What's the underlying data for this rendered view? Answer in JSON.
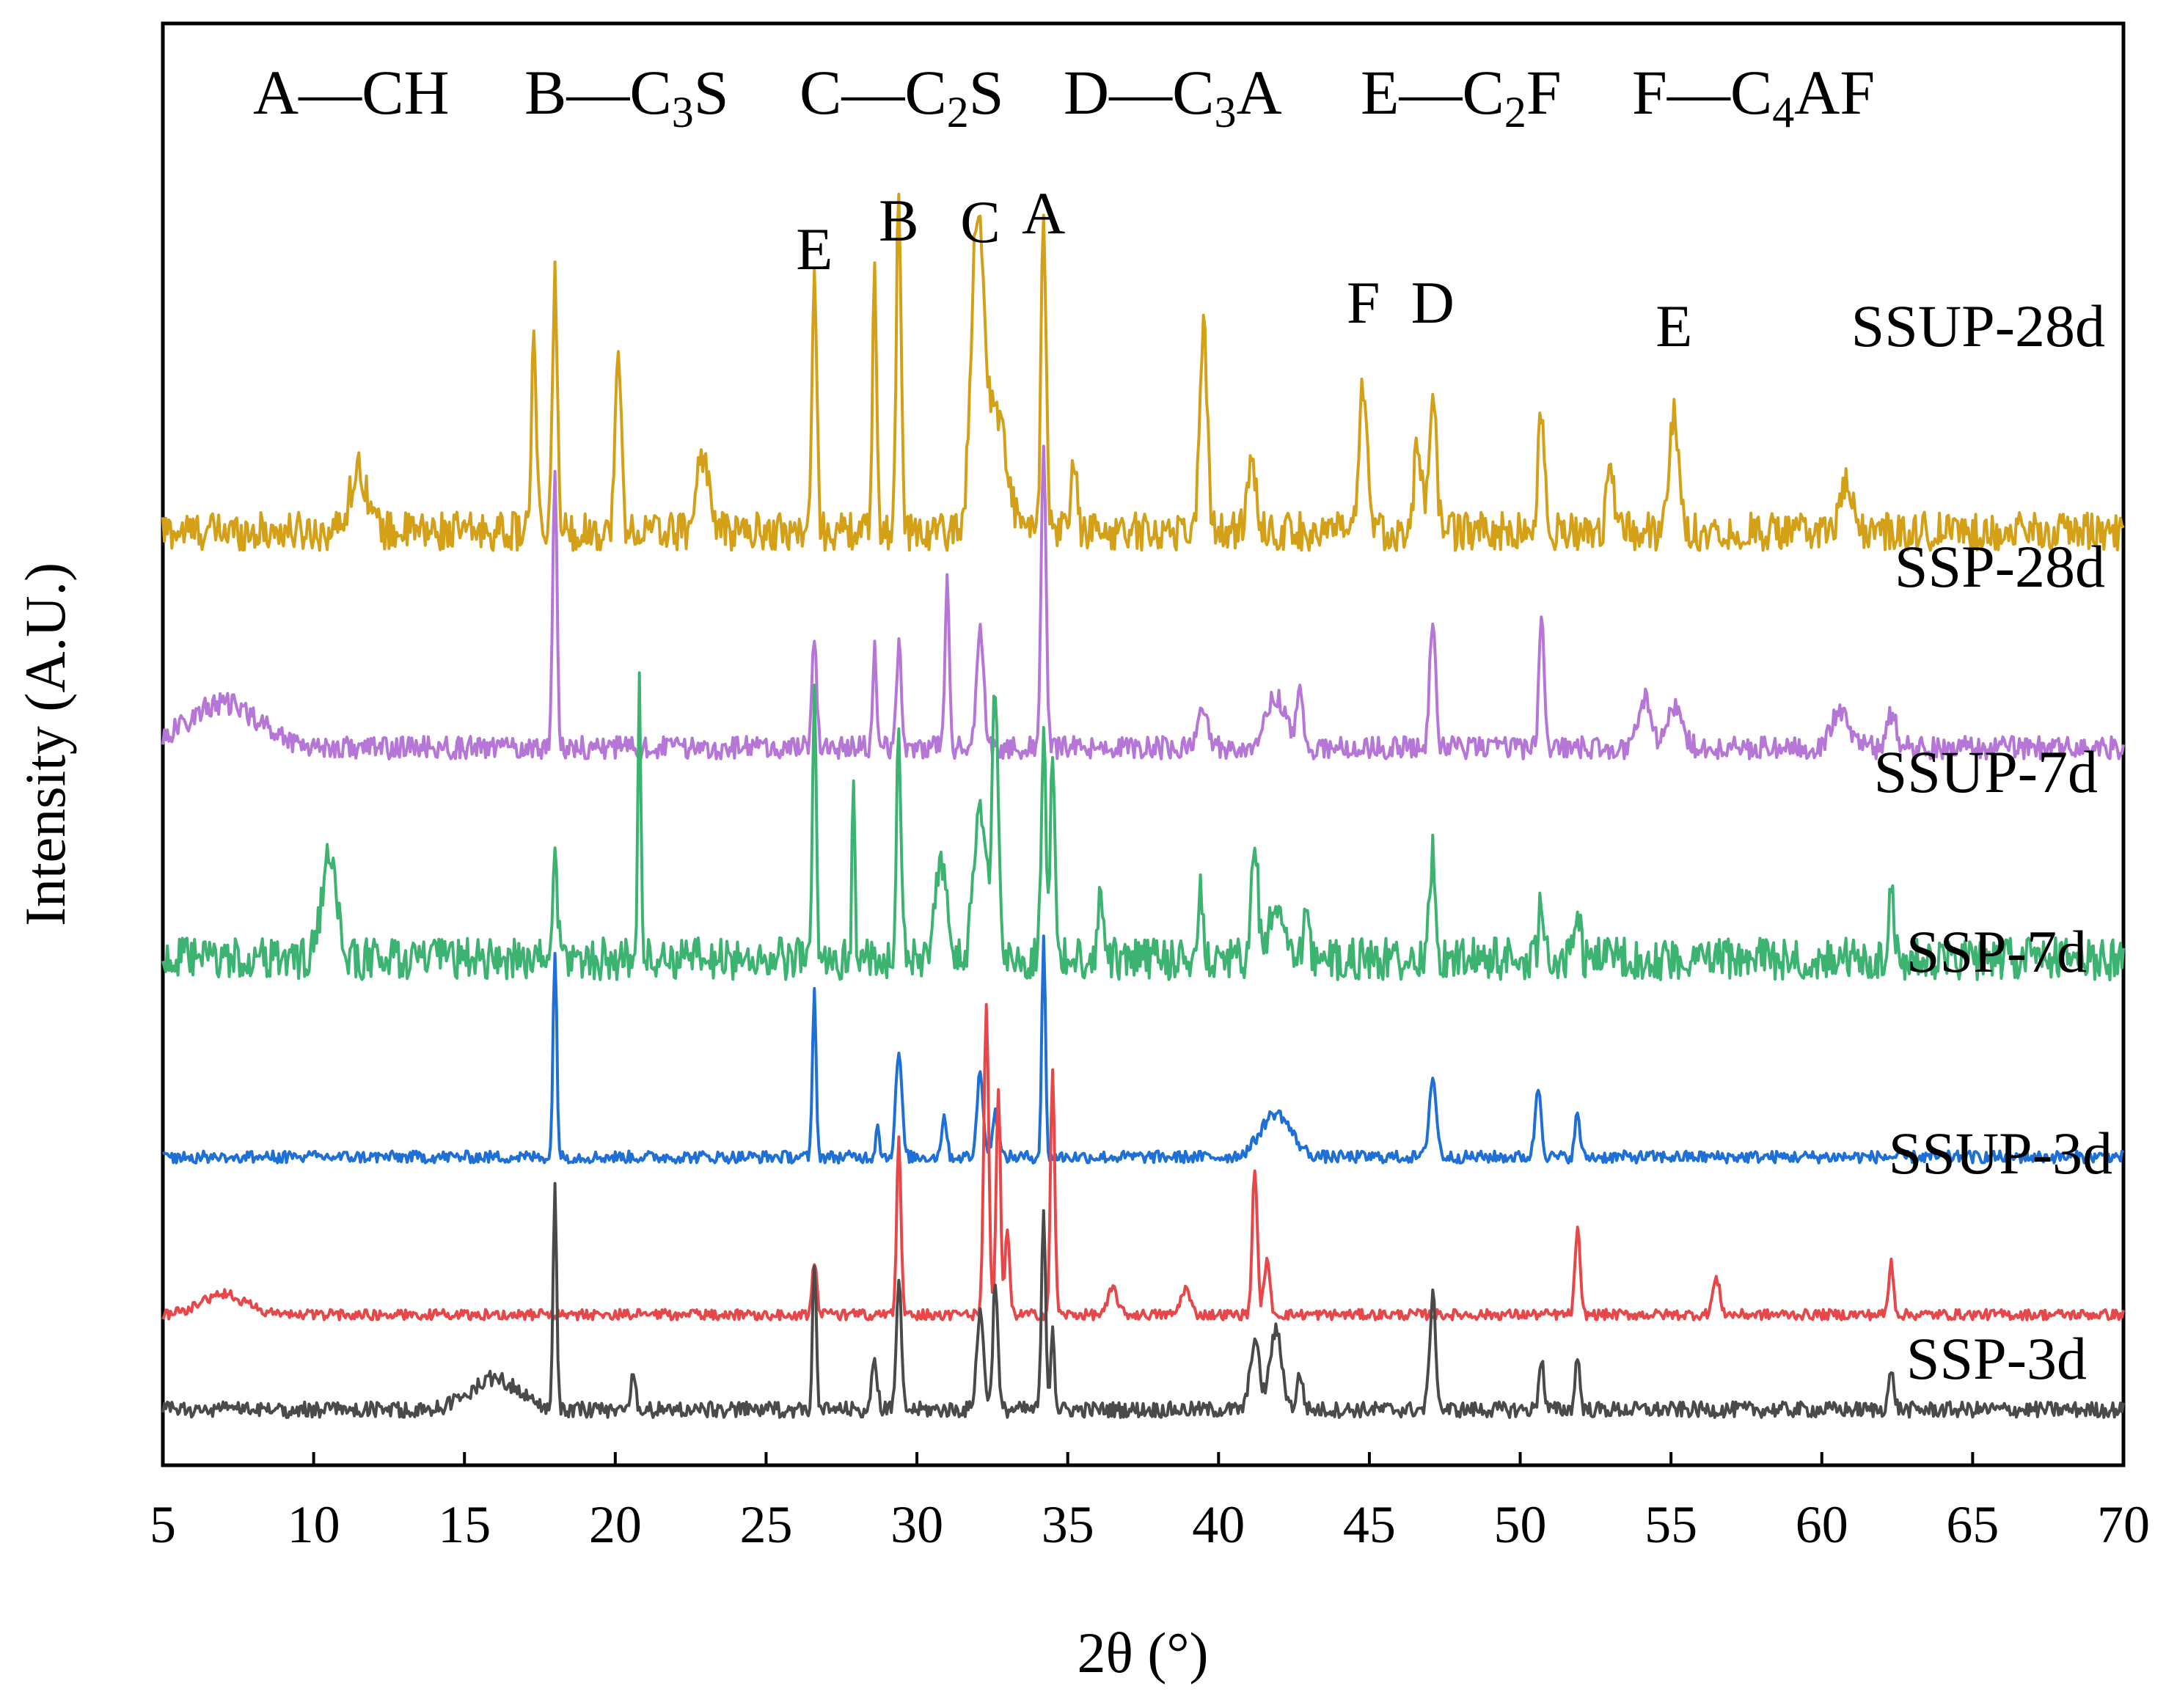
{
  "chart_data": {
    "type": "line",
    "title": "",
    "xlabel": "2θ (°)",
    "ylabel": "Intensity (A.U.)",
    "xlim": [
      5,
      70
    ],
    "x_ticks": [
      5,
      10,
      15,
      20,
      25,
      30,
      35,
      40,
      45,
      50,
      55,
      60,
      65,
      70
    ],
    "y_ticks_shown": false,
    "phase_legend": [
      {
        "key": "A",
        "dash": "—",
        "formula": "CH",
        "base": "CH",
        "sub": "",
        "rest": ""
      },
      {
        "key": "B",
        "dash": "—",
        "formula": "C3S",
        "base": "C",
        "sub": "3",
        "rest": "S"
      },
      {
        "key": "C",
        "dash": "—",
        "formula": "C2S",
        "base": "C",
        "sub": "2",
        "rest": "S"
      },
      {
        "key": "D",
        "dash": "—",
        "formula": "C3A",
        "base": "C",
        "sub": "3",
        "rest": "A"
      },
      {
        "key": "E",
        "dash": "—",
        "formula": "C2F",
        "base": "C",
        "sub": "2",
        "rest": "F"
      },
      {
        "key": "F",
        "dash": "—",
        "formula": "C4AF",
        "base": "C",
        "sub": "4",
        "rest": "AF"
      }
    ],
    "peak_annotations": [
      {
        "label": "E",
        "two_theta": 26.6
      },
      {
        "label": "B",
        "two_theta": 29.4
      },
      {
        "label": "C",
        "two_theta": 32.1
      },
      {
        "label": "A",
        "two_theta": 34.2
      },
      {
        "label": "F",
        "two_theta": 44.8
      },
      {
        "label": "D",
        "two_theta": 47.1
      },
      {
        "label": "E",
        "two_theta": 55.1
      }
    ],
    "series": [
      {
        "name": "SSUP-28d",
        "color": "#D4A017",
        "baseline": 5.0,
        "noise": 0.22,
        "peaks": [
          [
            11.5,
            0.35,
            0.3
          ],
          [
            17.3,
            1.1,
            0.08
          ],
          [
            18.0,
            1.45,
            0.08
          ],
          [
            20.1,
            1.0,
            0.1
          ],
          [
            22.9,
            0.45,
            0.2
          ],
          [
            26.6,
            1.4,
            0.08
          ],
          [
            28.6,
            1.45,
            0.07
          ],
          [
            29.4,
            1.95,
            0.08
          ],
          [
            32.0,
            1.7,
            0.2
          ],
          [
            32.6,
            0.7,
            0.35
          ],
          [
            34.2,
            1.85,
            0.08
          ],
          [
            35.2,
            0.4,
            0.1
          ],
          [
            39.5,
            1.2,
            0.12
          ],
          [
            41.1,
            0.4,
            0.15
          ],
          [
            44.8,
            0.85,
            0.12
          ],
          [
            46.6,
            0.5,
            0.12
          ],
          [
            47.1,
            0.8,
            0.12
          ],
          [
            50.7,
            0.7,
            0.1
          ],
          [
            53.0,
            0.4,
            0.12
          ],
          [
            55.1,
            0.65,
            0.15
          ],
          [
            60.8,
            0.25,
            0.2
          ]
        ]
      },
      {
        "name": "SSP-28d",
        "color": "#B576D8",
        "baseline": 3.78,
        "noise": 0.13,
        "peaks": [
          [
            7.0,
            0.25,
            1.2
          ],
          [
            18.0,
            1.6,
            0.07
          ],
          [
            26.6,
            0.6,
            0.08
          ],
          [
            28.6,
            0.6,
            0.06
          ],
          [
            29.4,
            0.6,
            0.08
          ],
          [
            31.0,
            0.95,
            0.07
          ],
          [
            32.1,
            0.65,
            0.12
          ],
          [
            34.2,
            1.7,
            0.08
          ],
          [
            39.5,
            0.22,
            0.15
          ],
          [
            41.9,
            0.28,
            0.35
          ],
          [
            42.7,
            0.3,
            0.1
          ],
          [
            47.1,
            0.75,
            0.1
          ],
          [
            50.7,
            0.8,
            0.08
          ],
          [
            54.1,
            0.28,
            0.2
          ],
          [
            55.1,
            0.25,
            0.25
          ],
          [
            60.6,
            0.2,
            0.3
          ],
          [
            62.3,
            0.2,
            0.15
          ]
        ]
      },
      {
        "name": "SSUP-7d",
        "color": "#3CB371",
        "baseline": 2.55,
        "noise": 0.24,
        "peaks": [
          [
            10.5,
            0.55,
            0.25
          ],
          [
            18.0,
            0.6,
            0.08
          ],
          [
            20.8,
            1.6,
            0.05
          ],
          [
            26.6,
            1.5,
            0.06
          ],
          [
            27.9,
            1.0,
            0.05
          ],
          [
            29.4,
            1.25,
            0.08
          ],
          [
            30.8,
            0.5,
            0.2
          ],
          [
            32.1,
            0.9,
            0.2
          ],
          [
            32.6,
            1.5,
            0.1
          ],
          [
            34.2,
            1.3,
            0.08
          ],
          [
            34.5,
            1.25,
            0.07
          ],
          [
            36.1,
            0.4,
            0.1
          ],
          [
            39.4,
            0.4,
            0.08
          ],
          [
            41.2,
            0.7,
            0.1
          ],
          [
            41.9,
            0.3,
            0.2
          ],
          [
            42.9,
            0.35,
            0.08
          ],
          [
            47.1,
            0.6,
            0.1
          ],
          [
            50.7,
            0.4,
            0.08
          ],
          [
            51.9,
            0.3,
            0.08
          ],
          [
            62.3,
            0.35,
            0.1
          ]
        ]
      },
      {
        "name": "SSP-7d",
        "color": "#1E6FD6",
        "baseline": 1.45,
        "noise": 0.07,
        "peaks": [
          [
            18.0,
            1.2,
            0.06
          ],
          [
            26.6,
            0.95,
            0.06
          ],
          [
            28.7,
            0.2,
            0.06
          ],
          [
            29.4,
            0.6,
            0.1
          ],
          [
            30.9,
            0.25,
            0.08
          ],
          [
            32.1,
            0.5,
            0.1
          ],
          [
            32.6,
            0.25,
            0.1
          ],
          [
            34.2,
            1.25,
            0.06
          ],
          [
            41.9,
            0.25,
            0.5
          ],
          [
            47.1,
            0.45,
            0.12
          ],
          [
            50.6,
            0.4,
            0.1
          ],
          [
            51.9,
            0.25,
            0.08
          ]
        ]
      },
      {
        "name": "SSUP-3d",
        "color": "#E8474A",
        "baseline": 0.55,
        "noise": 0.06,
        "peaks": [
          [
            7.0,
            0.12,
            0.7
          ],
          [
            26.6,
            0.3,
            0.08
          ],
          [
            29.4,
            1.0,
            0.07
          ],
          [
            32.3,
            1.75,
            0.08
          ],
          [
            32.7,
            1.3,
            0.07
          ],
          [
            33.0,
            0.5,
            0.07
          ],
          [
            34.5,
            1.4,
            0.07
          ],
          [
            36.5,
            0.15,
            0.15
          ],
          [
            38.9,
            0.15,
            0.15
          ],
          [
            41.2,
            0.85,
            0.08
          ],
          [
            41.6,
            0.3,
            0.1
          ],
          [
            51.9,
            0.5,
            0.08
          ],
          [
            56.5,
            0.2,
            0.12
          ],
          [
            62.3,
            0.3,
            0.08
          ]
        ]
      },
      {
        "name": "SSP-3d",
        "color": "#4A4A4A",
        "baseline": 0.0,
        "noise": 0.09,
        "peaks": [
          [
            16.0,
            0.18,
            0.8
          ],
          [
            18.0,
            1.25,
            0.06
          ],
          [
            20.6,
            0.2,
            0.08
          ],
          [
            26.6,
            0.85,
            0.06
          ],
          [
            28.6,
            0.25,
            0.1
          ],
          [
            29.4,
            0.75,
            0.08
          ],
          [
            32.1,
            0.55,
            0.12
          ],
          [
            32.6,
            0.75,
            0.08
          ],
          [
            34.2,
            1.1,
            0.07
          ],
          [
            34.5,
            0.5,
            0.06
          ],
          [
            41.2,
            0.4,
            0.15
          ],
          [
            41.9,
            0.45,
            0.2
          ],
          [
            42.7,
            0.2,
            0.1
          ],
          [
            47.1,
            0.65,
            0.1
          ],
          [
            50.7,
            0.3,
            0.08
          ],
          [
            51.9,
            0.3,
            0.08
          ],
          [
            62.3,
            0.2,
            0.1
          ]
        ]
      }
    ]
  }
}
